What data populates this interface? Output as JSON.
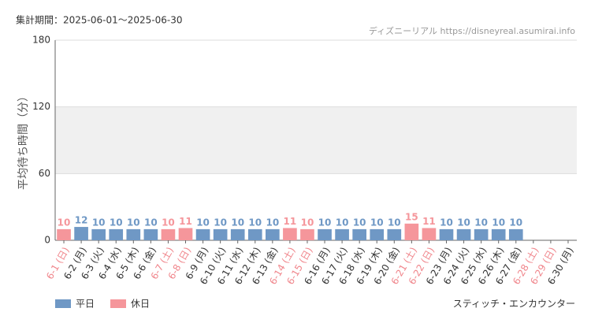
{
  "chart_data": {
    "type": "bar",
    "period": "集計期間：2025-06-01〜2025-06-30",
    "source": "ディズニーリアル https://disneyreal.asumirai.info",
    "y_label": "平均待ち時間（分）",
    "attraction": "スティッチ・エンカウンター",
    "categories": [
      "6-1 (日)",
      "6-2 (月)",
      "6-3 (火)",
      "6-4 (水)",
      "6-5 (木)",
      "6-6 (金)",
      "6-7 (土)",
      "6-8 (日)",
      "6-9 (月)",
      "6-10 (火)",
      "6-11 (水)",
      "6-12 (木)",
      "6-13 (金)",
      "6-14 (土)",
      "6-15 (日)",
      "6-16 (月)",
      "6-17 (火)",
      "6-18 (水)",
      "6-19 (木)",
      "6-20 (金)",
      "6-21 (土)",
      "6-22 (日)",
      "6-23 (月)",
      "6-24 (火)",
      "6-25 (水)",
      "6-26 (木)",
      "6-27 (金)",
      "6-28 (土)",
      "6-29 (日)",
      "6-30 (月)"
    ],
    "category_colors": [
      "#f0868c",
      "#333333",
      "#333333",
      "#333333",
      "#333333",
      "#333333",
      "#f0868c",
      "#f0868c",
      "#333333",
      "#333333",
      "#333333",
      "#333333",
      "#333333",
      "#f0868c",
      "#f0868c",
      "#333333",
      "#333333",
      "#333333",
      "#333333",
      "#333333",
      "#f0868c",
      "#f0868c",
      "#333333",
      "#333333",
      "#333333",
      "#333333",
      "#333333",
      "#f0868c",
      "#f0868c",
      "#333333"
    ],
    "series": [
      {
        "name": "平日",
        "color": "#6f98c5",
        "values": [
          null,
          12,
          10,
          10,
          10,
          10,
          null,
          null,
          10,
          10,
          10,
          10,
          10,
          null,
          null,
          10,
          10,
          10,
          10,
          10,
          null,
          null,
          10,
          10,
          10,
          10,
          10,
          null,
          null,
          null
        ]
      },
      {
        "name": "休日",
        "color": "#f5969b",
        "values": [
          10,
          null,
          null,
          null,
          null,
          null,
          10,
          11,
          null,
          null,
          null,
          null,
          null,
          11,
          10,
          null,
          null,
          null,
          null,
          null,
          15,
          11,
          null,
          null,
          null,
          null,
          null,
          null,
          null,
          null
        ]
      }
    ],
    "ylim": [
      0,
      180
    ],
    "yticks": [
      0,
      60,
      120,
      180
    ],
    "grid": true
  }
}
